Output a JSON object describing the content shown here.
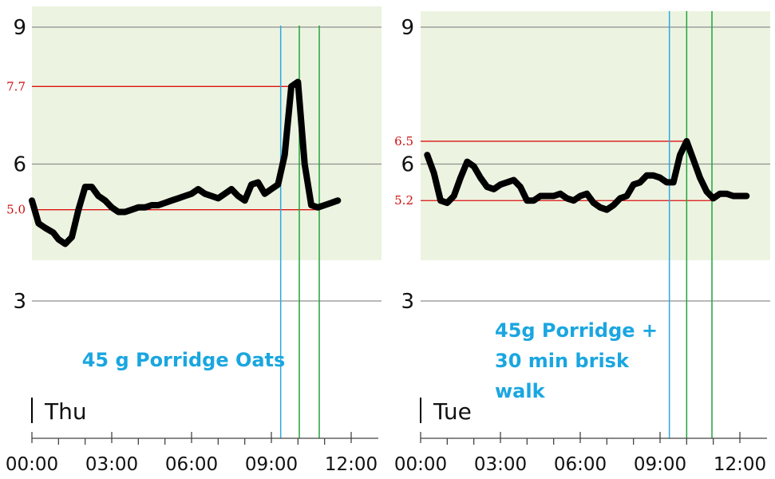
{
  "chart_data": [
    {
      "type": "line",
      "day_label": "Thu",
      "annotation": [
        "45 g Porridge Oats"
      ],
      "ylim": [
        2.2,
        9.6
      ],
      "xlim": [
        0,
        12.9
      ],
      "target_band": [
        4.0,
        10.0
      ],
      "y_ticks": [
        {
          "value": 9,
          "label": "9"
        },
        {
          "value": 6,
          "label": "6"
        },
        {
          "value": 3,
          "label": "3"
        }
      ],
      "x_ticks": [
        {
          "value": 0,
          "label": "00:00"
        },
        {
          "value": 3,
          "label": "03:00"
        },
        {
          "value": 6,
          "label": "06:00"
        },
        {
          "value": 9,
          "label": "09:00"
        },
        {
          "value": 12,
          "label": "12:00"
        }
      ],
      "reference_lines": [
        {
          "value": 7.7,
          "label": "7.7"
        },
        {
          "value": 5.0,
          "label": "5.0"
        }
      ],
      "event_lines": [
        {
          "x": 9.35,
          "kind": "meal"
        },
        {
          "x": 10.05,
          "kind": "marker"
        },
        {
          "x": 10.8,
          "kind": "marker"
        }
      ],
      "series": [
        {
          "x": [
            0,
            0.25,
            0.5,
            0.8,
            1.0,
            1.25,
            1.5,
            1.75,
            2.0,
            2.25,
            2.5,
            2.75,
            3.0,
            3.25,
            3.5,
            3.75,
            4.0,
            4.25,
            4.5,
            4.75,
            5.0,
            5.25,
            5.5,
            5.75,
            6.0,
            6.25,
            6.5,
            6.75,
            7.0,
            7.25,
            7.5,
            7.75,
            8.0,
            8.25,
            8.5,
            8.75,
            9.0,
            9.25,
            9.5,
            9.75,
            10.0,
            10.25,
            10.5,
            10.75,
            11.0,
            11.25,
            11.5
          ],
          "y": [
            5.2,
            4.7,
            4.6,
            4.5,
            4.35,
            4.25,
            4.4,
            5.0,
            5.5,
            5.5,
            5.3,
            5.2,
            5.05,
            4.95,
            4.95,
            5.0,
            5.05,
            5.05,
            5.1,
            5.1,
            5.15,
            5.2,
            5.25,
            5.3,
            5.35,
            5.45,
            5.35,
            5.3,
            5.25,
            5.35,
            5.45,
            5.3,
            5.2,
            5.55,
            5.6,
            5.35,
            5.45,
            5.55,
            6.2,
            7.7,
            7.8,
            6.0,
            5.1,
            5.05,
            5.1,
            5.15,
            5.2
          ]
        }
      ]
    },
    {
      "type": "line",
      "day_label": "Tue",
      "annotation": [
        "45g Porridge +",
        "30 min brisk",
        "walk"
      ],
      "ylim": [
        2.2,
        9.6
      ],
      "xlim": [
        0,
        12.9
      ],
      "target_band": [
        4.0,
        10.0
      ],
      "y_ticks": [
        {
          "value": 9,
          "label": "9"
        },
        {
          "value": 6,
          "label": "6"
        },
        {
          "value": 3,
          "label": "3"
        }
      ],
      "x_ticks": [
        {
          "value": 0,
          "label": "00:00"
        },
        {
          "value": 3,
          "label": "03:00"
        },
        {
          "value": 6,
          "label": "06:00"
        },
        {
          "value": 9,
          "label": "09:00"
        },
        {
          "value": 12,
          "label": "12:00"
        }
      ],
      "reference_lines": [
        {
          "value": 6.5,
          "label": "6.5"
        },
        {
          "value": 5.2,
          "label": "5.2"
        }
      ],
      "event_lines": [
        {
          "x": 9.35,
          "kind": "meal"
        },
        {
          "x": 10.0,
          "kind": "marker"
        },
        {
          "x": 10.95,
          "kind": "marker"
        }
      ],
      "series": [
        {
          "x": [
            0.25,
            0.5,
            0.75,
            1.0,
            1.25,
            1.5,
            1.75,
            2.0,
            2.25,
            2.5,
            2.75,
            3.0,
            3.25,
            3.5,
            3.75,
            4.0,
            4.25,
            4.5,
            4.75,
            5.0,
            5.25,
            5.5,
            5.75,
            6.0,
            6.25,
            6.5,
            6.75,
            7.0,
            7.25,
            7.5,
            7.75,
            8.0,
            8.25,
            8.5,
            8.75,
            9.0,
            9.25,
            9.5,
            9.75,
            10.0,
            10.25,
            10.5,
            10.75,
            11.0,
            11.25,
            11.5,
            11.75,
            12.0,
            12.25
          ],
          "y": [
            6.2,
            5.8,
            5.2,
            5.15,
            5.3,
            5.7,
            6.05,
            5.95,
            5.7,
            5.5,
            5.45,
            5.55,
            5.6,
            5.65,
            5.5,
            5.2,
            5.2,
            5.3,
            5.3,
            5.3,
            5.35,
            5.25,
            5.2,
            5.3,
            5.35,
            5.15,
            5.05,
            5.0,
            5.1,
            5.25,
            5.3,
            5.55,
            5.6,
            5.75,
            5.75,
            5.7,
            5.6,
            5.6,
            6.2,
            6.5,
            6.1,
            5.7,
            5.4,
            5.25,
            5.35,
            5.35,
            5.3,
            5.3,
            5.3
          ]
        }
      ]
    }
  ],
  "colors": {
    "target_band": "#ecf4e1",
    "curve": "#000000",
    "reference_line": "#dd1111",
    "reference_label": "#cc1111",
    "meal_line": "#2aa9e0",
    "marker_line": "#22a43a",
    "gridline": "#8f8f8f",
    "annotation": "#1aa6e0",
    "axis": "#444444"
  }
}
